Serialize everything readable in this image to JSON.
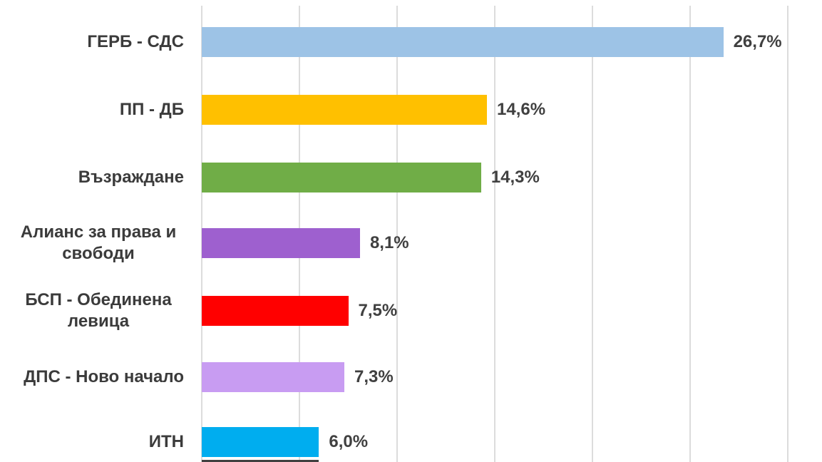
{
  "chart_data": {
    "type": "bar",
    "orientation": "horizontal",
    "title": "",
    "xlabel": "",
    "ylabel": "",
    "categories": [
      "ГЕРБ - СДС",
      "ПП - ДБ",
      "Възраждане",
      "Алианс за права и свободи",
      "БСП - Обединена левица",
      "ДПС - Ново начало",
      "ИТН"
    ],
    "values": [
      26.7,
      14.6,
      14.3,
      8.1,
      7.5,
      7.3,
      6.0
    ],
    "value_labels": [
      "26,7%",
      "14,6%",
      "14,3%",
      "8,1%",
      "7,5%",
      "7,3%",
      "6,0%"
    ],
    "bar_colors": [
      "#9dc3e6",
      "#ffc000",
      "#70ad47",
      "#9e60cf",
      "#ff0000",
      "#c89cf2",
      "#00adef"
    ],
    "xlim": [
      0,
      30
    ],
    "gridline_step": 5,
    "grid": true,
    "legend_position": "none",
    "cutoff_bar": {
      "value": 6.0,
      "color": "#404040"
    }
  },
  "styles": {
    "background_color": "#ffffff",
    "gridline_color": "#dcdcdc",
    "label_color": "#3b3b3b",
    "value_color": "#404040"
  }
}
